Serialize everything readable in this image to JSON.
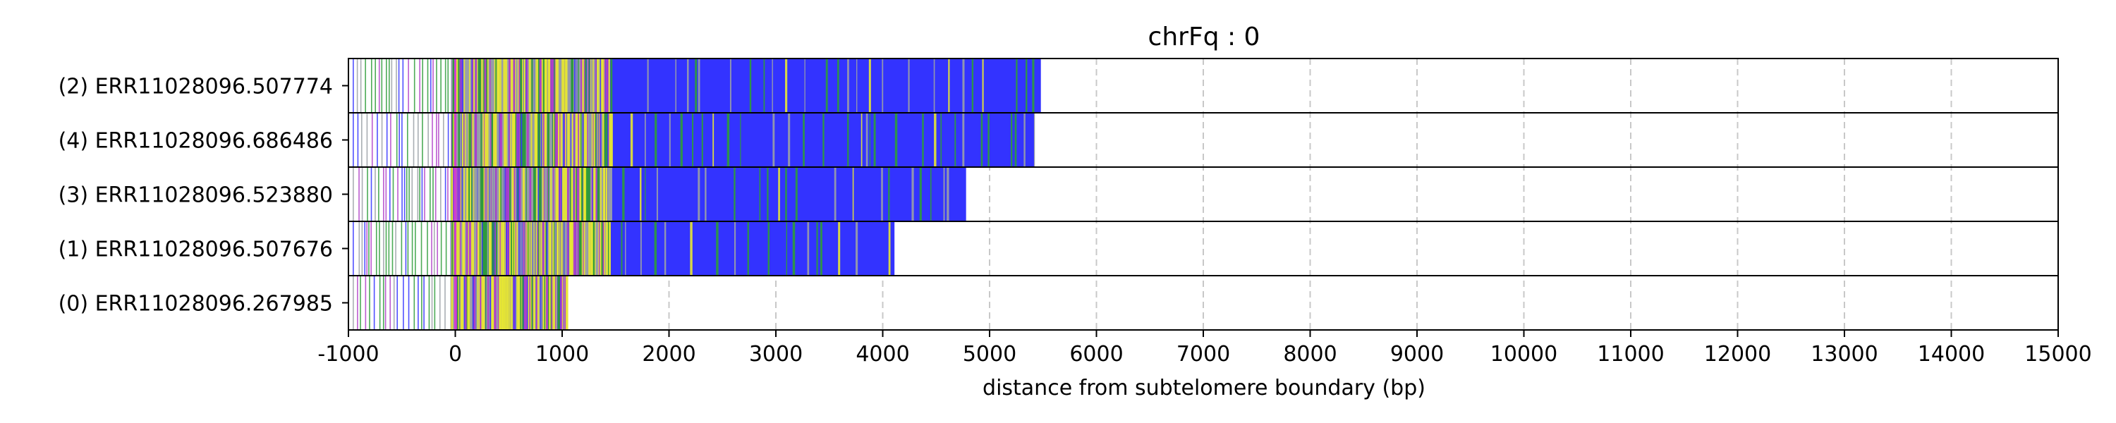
{
  "chart_data": {
    "type": "bar",
    "title": "chrFq : 0",
    "xlabel": "distance from subtelomere boundary (bp)",
    "ylabel": "",
    "xlim": [
      -1000,
      15000
    ],
    "xticks": [
      -1000,
      0,
      1000,
      2000,
      3000,
      4000,
      5000,
      6000,
      7000,
      8000,
      9000,
      10000,
      11000,
      12000,
      13000,
      14000,
      15000
    ],
    "grid": "vertical dashed",
    "rows": [
      {
        "label": "(2) ERR11028096.507774",
        "start": -960,
        "end": 5480
      },
      {
        "label": "(4) ERR11028096.686486",
        "start": -960,
        "end": 5420
      },
      {
        "label": "(3) ERR11028096.523880",
        "start": -960,
        "end": 4780
      },
      {
        "label": "(1) ERR11028096.507676",
        "start": -960,
        "end": 4110
      },
      {
        "label": "(0) ERR11028096.267985",
        "start": -960,
        "end": 1040
      }
    ],
    "colors": {
      "dense_blue": "#3333ff",
      "green": "#2e9c3a",
      "yellow": "#e8e832",
      "purple": "#b040c8",
      "gray": "#9aa0a6",
      "grid": "#c8c8c8"
    }
  }
}
